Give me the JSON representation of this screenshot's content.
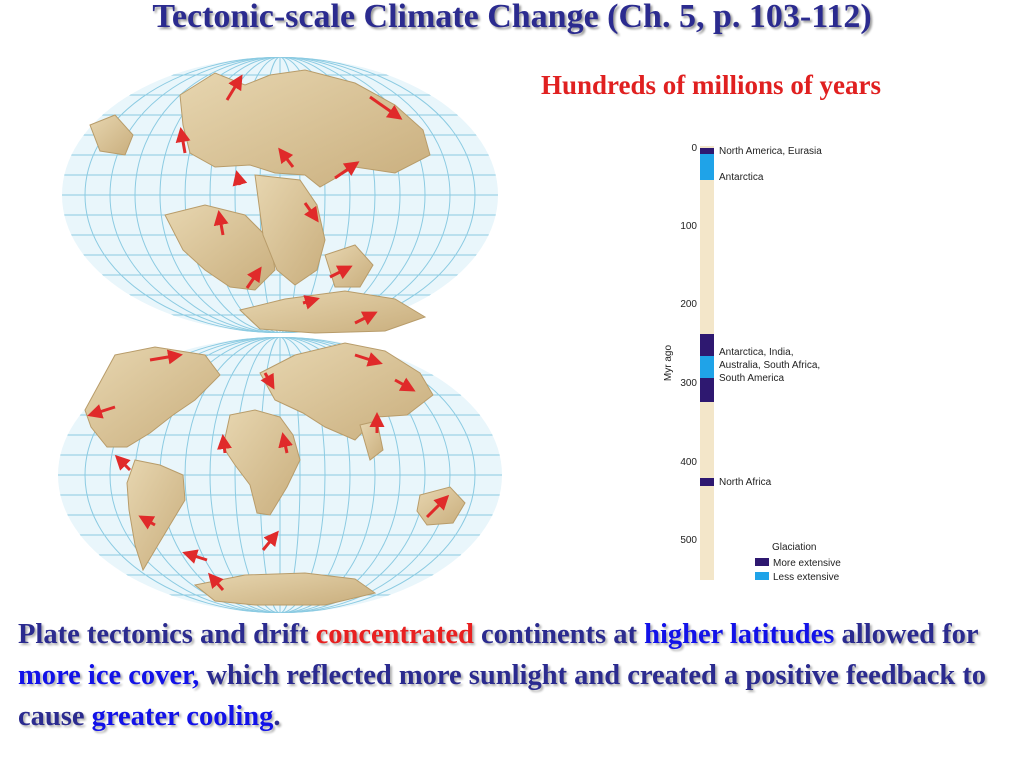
{
  "title": "Tectonic-scale Climate Change (Ch. 5, p. 103-112)",
  "subtitle": "Hundreds of millions of years",
  "timeline": {
    "axis_label": "Myr ago",
    "ticks": [
      "0",
      "100",
      "200",
      "300",
      "400",
      "500"
    ],
    "labels": {
      "na_eurasia": "North America, Eurasia",
      "antarctica": "Antarctica",
      "gondwana_1": "Antarctica, India,",
      "gondwana_2": "Australia, South Africa,",
      "gondwana_3": "South America",
      "north_africa": "North Africa"
    },
    "legend": {
      "title": "Glaciation",
      "more": "More extensive",
      "less": "Less extensive"
    },
    "colors": {
      "bar": "#f3e6c9",
      "more": "#2e1870",
      "less": "#1fa3e8"
    }
  },
  "caption": {
    "p1": "Plate tectonics and drift ",
    "p2": "concentrated",
    "p3": " continents at ",
    "p4": "higher latitudes",
    "p5": " allowed for ",
    "p6": "more ice cover,",
    "p7": " which reflected more sunlight and created a positive feedback to cause ",
    "p8": "greater cooling",
    "p9": "."
  },
  "colors": {
    "title": "#2b2b8f",
    "accent_red": "#e82020",
    "accent_blue": "#1212e8",
    "ocean": "#e9f6fb",
    "grid": "#8ccbe2",
    "land": "#d8c49a",
    "arrow": "#e02a2a"
  }
}
